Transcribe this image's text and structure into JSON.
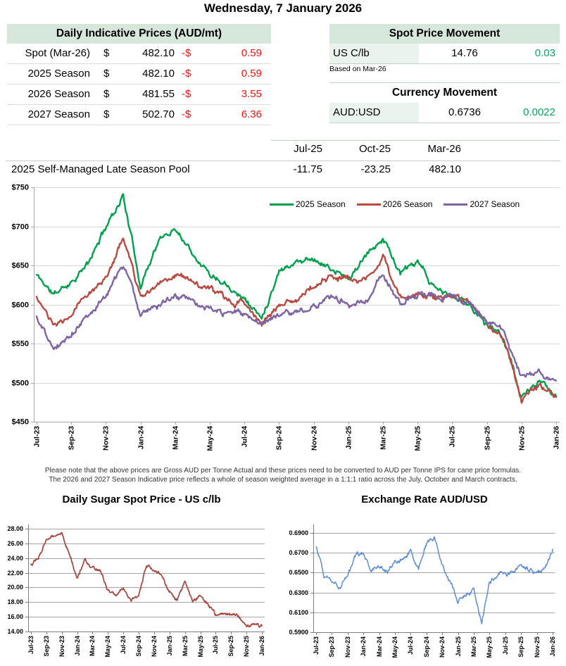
{
  "page_title": "Wednesday, 7 January 2026",
  "indicative": {
    "header": "Daily Indicative Prices (AUD/mt)",
    "rows": [
      {
        "label": "Spot (Mar-26)",
        "currency": "$",
        "value": "482.10",
        "change_sign": "-$",
        "change": "0.59"
      },
      {
        "label": "2025 Season",
        "currency": "$",
        "value": "482.10",
        "change_sign": "-$",
        "change": "0.59"
      },
      {
        "label": "2026 Season",
        "currency": "$",
        "value": "481.55",
        "change_sign": "-$",
        "change": "3.55"
      },
      {
        "label": "2027 Season",
        "currency": "$",
        "value": "502.70",
        "change_sign": "-$",
        "change": "6.36"
      }
    ]
  },
  "spot_movement": {
    "header": "Spot Price Movement",
    "label": "US C/lb",
    "value": "14.76",
    "change": "0.03",
    "note": "Based on Mar-26"
  },
  "currency_movement": {
    "header": "Currency Movement",
    "label": "AUD:USD",
    "value": "0.6736",
    "change": "0.0022"
  },
  "pool": {
    "columns": [
      "Jul-25",
      "Oct-25",
      "Mar-26"
    ],
    "label": "2025 Self-Managed Late Season Pool",
    "values": [
      "-11.75",
      "-23.25",
      "482.10"
    ]
  },
  "notes": {
    "line1": "Please note that the above prices are Gross AUD per Tonne Actual and these prices need to be converted to AUD per Tonne IPS for cane price formulas.",
    "line2": "The 2026 and 2027 Season Indicative price reflects a whole of season weighted average in a 1:1:1 ratio across the July, October and March contracts."
  },
  "colors": {
    "header_bg": "#d6e7dc",
    "label_cell_bg": "#eaf3ee",
    "light_green_border": "#bcd7c7",
    "negative_text": "#ee1111",
    "positive_text": "#00a85f",
    "series_2025": "#00A14D",
    "series_2026": "#B94A42",
    "series_2027": "#7E64A5",
    "sugar_line": "#A8433D",
    "fx_line": "#5B8BD6"
  },
  "chart_data": [
    {
      "id": "main",
      "type": "line",
      "title": "",
      "x_start": "Jul-23",
      "x_end": "Jan-26",
      "x_tick_labels": [
        "Jul-23",
        "Sep-23",
        "Nov-23",
        "Jan-24",
        "Mar-24",
        "May-24",
        "Jul-24",
        "Sep-24",
        "Nov-24",
        "Jan-25",
        "Mar-25",
        "May-25",
        "Jul-25",
        "Sep-25",
        "Nov-25",
        "Jan-26"
      ],
      "ylim": [
        450,
        750
      ],
      "ystep": 50,
      "y_prefix": "$",
      "y_decimals": 0,
      "grid": true,
      "legend_position": "top-inside",
      "series": [
        {
          "name": "2025 Season",
          "color": "#00A14D",
          "monthly_values": [
            638,
            612,
            630,
            652,
            700,
            740,
            625,
            680,
            698,
            668,
            640,
            628,
            608,
            582,
            645,
            655,
            660,
            645,
            632,
            660,
            686,
            640,
            652,
            620,
            610,
            600,
            575,
            558,
            480,
            500,
            482.1
          ]
        },
        {
          "name": "2026 Season",
          "color": "#B94A42",
          "monthly_values": [
            610,
            570,
            586,
            618,
            632,
            686,
            608,
            628,
            640,
            630,
            618,
            606,
            600,
            577,
            600,
            606,
            625,
            636,
            630,
            634,
            658,
            606,
            616,
            610,
            612,
            600,
            575,
            558,
            478,
            496,
            481.55
          ]
        },
        {
          "name": "2027 Season",
          "color": "#7E64A5",
          "monthly_values": [
            585,
            543,
            562,
            592,
            610,
            650,
            590,
            600,
            612,
            600,
            592,
            588,
            588,
            572,
            590,
            588,
            600,
            610,
            600,
            606,
            638,
            600,
            614,
            612,
            610,
            600,
            578,
            565,
            505,
            512,
            502.7
          ]
        }
      ]
    },
    {
      "id": "sugar",
      "type": "line",
      "title": "Daily Sugar Spot Price - US c/lb",
      "x_tick_labels": [
        "Jul-23",
        "Sep-23",
        "Nov-23",
        "Jan-24",
        "Mar-24",
        "May-24",
        "Jul-24",
        "Sep-24",
        "Nov-24",
        "Jan-25",
        "Mar-25",
        "May-25",
        "Jul-25",
        "Sep-25",
        "Nov-25",
        "Jan-26"
      ],
      "ylim": [
        14,
        28
      ],
      "ystep": 2,
      "y_prefix": "",
      "y_decimals": 2,
      "grid": true,
      "series": [
        {
          "name": "US c/lb",
          "color": "#A8433D",
          "monthly_values": [
            23.2,
            24.2,
            26.3,
            27.2,
            27.6,
            24.5,
            21.2,
            23.8,
            22.6,
            22.2,
            19.6,
            18.7,
            19.9,
            18.3,
            19.0,
            23.0,
            22.2,
            21.5,
            19.4,
            18.3,
            20.8,
            18.2,
            19.0,
            17.7,
            16.2,
            16.4,
            16.3,
            16.1,
            14.6,
            15.0,
            14.76
          ]
        }
      ]
    },
    {
      "id": "fx",
      "type": "line",
      "title": "Exchange Rate AUD/USD",
      "x_tick_labels": [
        "Jul-23",
        "Sep-23",
        "Nov-23",
        "Jan-24",
        "Mar-24",
        "May-24",
        "Jul-24",
        "Sep-24",
        "Nov-24",
        "Jan-25",
        "Mar-25",
        "May-25",
        "Jul-25",
        "Sep-25",
        "Nov-25",
        "Jan-26"
      ],
      "ylim": [
        0.59,
        0.69
      ],
      "ystep": 0.02,
      "y_prefix": "",
      "y_decimals": 4,
      "grid": true,
      "series": [
        {
          "name": "AUD/USD",
          "color": "#5B8BD6",
          "monthly_values": [
            0.676,
            0.648,
            0.643,
            0.634,
            0.646,
            0.668,
            0.668,
            0.652,
            0.657,
            0.649,
            0.66,
            0.664,
            0.672,
            0.653,
            0.678,
            0.686,
            0.657,
            0.641,
            0.622,
            0.627,
            0.631,
            0.6,
            0.642,
            0.647,
            0.651,
            0.648,
            0.659,
            0.654,
            0.65,
            0.657,
            0.6736
          ]
        }
      ]
    }
  ]
}
